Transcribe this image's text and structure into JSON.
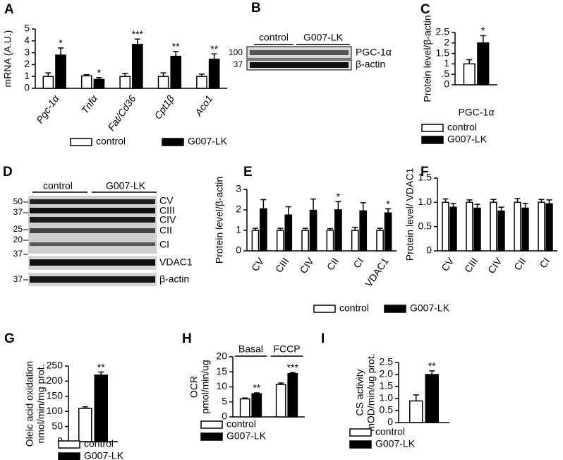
{
  "chart_data": [
    {
      "type": "bar",
      "panel": "A",
      "ylabel": "mRNA (A.U.)",
      "categories": [
        "Pgc-1α",
        "Tnfα",
        "Fat/Cd36",
        "Cpt1β",
        "Aco1"
      ],
      "series": [
        {
          "name": "control",
          "color": "#ffffff",
          "values": [
            1.0,
            1.05,
            1.0,
            1.0,
            1.0
          ],
          "errors": [
            0.3,
            0.1,
            0.25,
            0.3,
            0.2
          ]
        },
        {
          "name": "G007-LK",
          "color": "#000000",
          "values": [
            2.8,
            0.75,
            3.7,
            2.7,
            2.45
          ],
          "errors": [
            0.6,
            0.15,
            0.45,
            0.4,
            0.45
          ],
          "significance": [
            "*",
            "*",
            "***",
            "**",
            "**"
          ]
        }
      ],
      "ylim": [
        0,
        5
      ],
      "yticks": [
        0,
        1,
        2,
        3,
        4,
        5
      ]
    },
    {
      "type": "bar",
      "panel": "C",
      "ylabel": "Protein level/β-actin",
      "categories": [
        "PGC-1α"
      ],
      "series": [
        {
          "name": "control",
          "color": "#ffffff",
          "values": [
            1.0
          ],
          "errors": [
            0.2
          ]
        },
        {
          "name": "G007-LK",
          "color": "#000000",
          "values": [
            2.0
          ],
          "errors": [
            0.35
          ],
          "significance": [
            "*"
          ]
        }
      ],
      "ylim": [
        0,
        2.5
      ],
      "yticks": [
        0,
        {
          "value": 0.5,
          "label": ".5"
        },
        1,
        1.5,
        2,
        2.5
      ]
    },
    {
      "type": "bar",
      "panel": "E",
      "ylabel": "Protein level/β-actin",
      "categories": [
        "CV",
        "CIII",
        "CIV",
        "CII",
        "CI",
        "VDAC1"
      ],
      "series": [
        {
          "name": "control",
          "color": "#ffffff",
          "values": [
            1.0,
            1.0,
            1.0,
            1.0,
            1.0,
            1.0
          ],
          "errors": [
            0.1,
            0.1,
            0.1,
            0.08,
            0.15,
            0.1
          ]
        },
        {
          "name": "G007-LK",
          "color": "#000000",
          "values": [
            2.05,
            1.75,
            1.98,
            2.0,
            1.95,
            1.85
          ],
          "errors": [
            0.45,
            0.4,
            0.55,
            0.4,
            0.4,
            0.2
          ],
          "significance": [
            null,
            null,
            null,
            "*",
            null,
            "*"
          ]
        }
      ],
      "ylim": [
        0,
        3
      ],
      "yticks": [
        0,
        1,
        2,
        3
      ]
    },
    {
      "type": "bar",
      "panel": "F",
      "ylabel": "Protein level/ VDAC1",
      "categories": [
        "CV",
        "CIII",
        "CIV",
        "CII",
        "CI"
      ],
      "series": [
        {
          "color": "#ffffff",
          "values": [
            1.0,
            1.0,
            1.0,
            1.0,
            1.0
          ],
          "errors": [
            0.07,
            0.05,
            0.06,
            0.08,
            0.06
          ]
        },
        {
          "color": "#000000",
          "values": [
            0.9,
            0.88,
            0.82,
            0.88,
            0.97
          ],
          "errors": [
            0.08,
            0.08,
            0.08,
            0.1,
            0.08
          ]
        }
      ],
      "ylim": [
        0,
        1.5
      ],
      "yticks": [
        0,
        0.5,
        {
          "value": 1,
          "label": "1.0"
        },
        1.5
      ]
    },
    {
      "type": "bar",
      "panel": "G",
      "ylabel": [
        "Oleic acid oxidation",
        "nmol/min/mg prot."
      ],
      "categories": [
        null
      ],
      "series": [
        {
          "name": "control",
          "color": "#ffffff",
          "values": [
            110
          ],
          "errors": [
            5
          ]
        },
        {
          "name": "G007-LK",
          "color": "#000000",
          "values": [
            220
          ],
          "errors": [
            10
          ],
          "significance": [
            "**"
          ]
        }
      ],
      "ylim": [
        0,
        250
      ],
      "yticks": [
        0,
        50,
        100,
        150,
        200,
        250
      ]
    },
    {
      "type": "bar",
      "panel": "H",
      "ylabel": [
        "OCR",
        "pmol/min/ug"
      ],
      "categories": [
        "Basal",
        "FCCP"
      ],
      "series": [
        {
          "name": "control",
          "color": "#ffffff",
          "values": [
            6.0,
            10.8
          ],
          "errors": [
            0.3,
            0.5
          ]
        },
        {
          "name": "G007-LK",
          "color": "#000000",
          "values": [
            7.7,
            14.4
          ],
          "errors": [
            0.3,
            0.4
          ],
          "significance": [
            "**",
            "***"
          ]
        }
      ],
      "ylim": [
        0,
        20
      ],
      "yticks": [
        0,
        5,
        10,
        15,
        20
      ]
    },
    {
      "type": "bar",
      "panel": "I",
      "ylabel": [
        "CS activity",
        "mOD/min/ug prot."
      ],
      "categories": [
        null
      ],
      "series": [
        {
          "name": "control",
          "color": "#ffffff",
          "values": [
            0.9
          ],
          "errors": [
            0.25
          ]
        },
        {
          "name": "G007-LK",
          "color": "#000000",
          "values": [
            2.0
          ],
          "errors": [
            0.15
          ],
          "significance": [
            "**"
          ]
        }
      ],
      "ylim": [
        0,
        2.5
      ],
      "yticks": [
        0,
        {
          "value": 0.5,
          "label": "0.5"
        },
        {
          "value": 1,
          "label": "1.0"
        },
        1.5,
        {
          "value": 2,
          "label": "2.0"
        },
        2.5
      ]
    }
  ],
  "blots": [
    {
      "panel": "B",
      "groups": [
        "control",
        "G007-LK"
      ],
      "markers": [
        "100",
        "37"
      ],
      "bands": [
        "PGC-1α",
        "β-actin"
      ]
    },
    {
      "panel": "D",
      "groups": [
        "control",
        "G007-LK"
      ],
      "markers": [
        "50",
        "37",
        "25",
        "20",
        "37",
        "37"
      ],
      "bands": [
        "CV",
        "CIII",
        "CIV",
        "CII",
        "CI",
        "VDAC1",
        "β-actin"
      ]
    }
  ]
}
